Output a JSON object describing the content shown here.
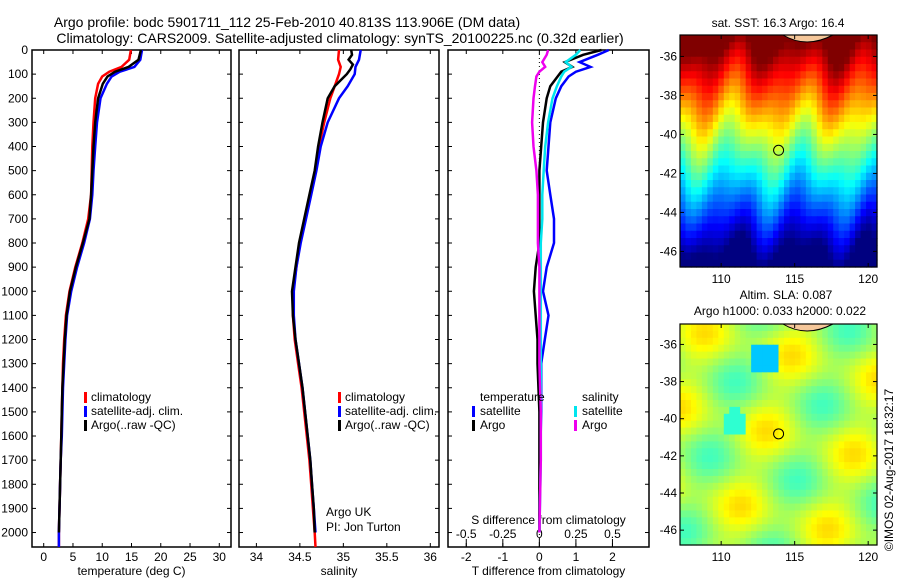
{
  "titles": {
    "line1": "Argo profile: bodc 5901711_112 25-Feb-2010 40.813S 113.906E (DM data)",
    "line2": "Climatology: CARS2009. Satellite-adjusted climatology: synTS_20100225.nc (0.32d earlier)"
  },
  "colors": {
    "climatology": "#ff0000",
    "satellite": "#0000ff",
    "argo": "#000000",
    "salinity_satellite": "#00e5ee",
    "salinity_argo": "#ee00ee"
  },
  "chart_data": [
    {
      "type": "line",
      "id": "temperature",
      "xlabel": "temperature (deg C)",
      "ylabel": "",
      "xlim": [
        -2,
        32
      ],
      "ylim": [
        2060,
        0
      ],
      "xticks": [
        "0",
        "5",
        "10",
        "15",
        "20",
        "25",
        "30"
      ],
      "xtick_values": [
        0,
        5,
        10,
        15,
        20,
        25,
        30
      ],
      "yticks": [
        "0",
        "100",
        "200",
        "300",
        "400",
        "500",
        "600",
        "700",
        "800",
        "900",
        "1000",
        "1100",
        "1200",
        "1300",
        "1400",
        "1500",
        "1600",
        "1700",
        "1800",
        "1900",
        "2000"
      ],
      "ytick_values": [
        0,
        100,
        200,
        300,
        400,
        500,
        600,
        700,
        800,
        900,
        1000,
        1100,
        1200,
        1300,
        1400,
        1500,
        1600,
        1700,
        1800,
        1900,
        2000
      ],
      "legend": [
        "climatology",
        "satellite-adj. clim.",
        "Argo(..raw -QC)"
      ],
      "legend_position": "lower-center",
      "series": [
        {
          "name": "climatology",
          "depth": [
            0,
            40,
            70,
            90,
            110,
            140,
            200,
            300,
            400,
            500,
            600,
            700,
            800,
            900,
            1000,
            1100,
            1200,
            1300,
            1400,
            1500,
            1600,
            1700,
            1800,
            1900,
            2000,
            2060
          ],
          "values": [
            14.9,
            14.6,
            13.3,
            11.2,
            10.0,
            9.3,
            8.8,
            8.5,
            8.3,
            8.2,
            8.1,
            7.6,
            6.6,
            5.4,
            4.4,
            3.8,
            3.5,
            3.3,
            3.2,
            3.1,
            3.0,
            2.9,
            2.8,
            2.7,
            2.6,
            2.6
          ]
        },
        {
          "name": "satellite-adj. clim.",
          "depth": [
            0,
            40,
            70,
            90,
            110,
            140,
            200,
            300,
            400,
            500,
            600,
            700,
            800,
            900,
            1000,
            1100,
            1200,
            1300,
            1400,
            1500,
            1600,
            1700,
            1800,
            1900,
            2000,
            2060
          ],
          "values": [
            16.8,
            16.5,
            15.5,
            13.0,
            11.6,
            10.8,
            9.7,
            9.1,
            8.8,
            8.5,
            8.3,
            7.9,
            6.9,
            5.7,
            4.7,
            4.0,
            3.7,
            3.5,
            3.3,
            3.2,
            3.1,
            2.9,
            2.8,
            2.7,
            2.6,
            2.6
          ]
        },
        {
          "name": "Argo(..raw -QC)",
          "depth": [
            0,
            40,
            70,
            90,
            110,
            140,
            200,
            300,
            400,
            500,
            600,
            700,
            800,
            900,
            1000,
            1100,
            1200,
            1300,
            1400,
            1500,
            1600,
            1700,
            1800,
            1900,
            2000
          ],
          "values": [
            16.6,
            16.2,
            14.5,
            12.2,
            10.9,
            10.1,
            9.3,
            8.8,
            8.5,
            8.3,
            8.1,
            7.8,
            6.7,
            5.5,
            4.5,
            3.9,
            3.6,
            3.4,
            3.2,
            3.1,
            3.0,
            2.9,
            2.8,
            2.7,
            2.6
          ]
        }
      ]
    },
    {
      "type": "line",
      "id": "salinity",
      "xlabel": "salinity",
      "xlim": [
        33.8,
        36.1
      ],
      "ylim": [
        2060,
        0
      ],
      "xticks": [
        "34",
        "34.5",
        "35",
        "35.5",
        "36"
      ],
      "xtick_values": [
        34,
        34.5,
        35,
        35.5,
        36
      ],
      "legend": [
        "climatology",
        "satellite-adj. clim.",
        "Argo(..raw -QC)"
      ],
      "legend_position": "lower-right",
      "annotation": [
        "Argo UK",
        "PI: Jon Turton"
      ],
      "series": [
        {
          "name": "climatology",
          "depth": [
            0,
            40,
            70,
            100,
            150,
            200,
            300,
            400,
            500,
            600,
            700,
            800,
            900,
            1000,
            1100,
            1200,
            1300,
            1400,
            1500,
            1600,
            1700,
            1800,
            1900,
            2000,
            2060
          ],
          "values": [
            34.95,
            34.94,
            34.97,
            34.95,
            34.9,
            34.85,
            34.78,
            34.72,
            34.68,
            34.62,
            34.56,
            34.5,
            34.46,
            34.42,
            34.42,
            34.44,
            34.48,
            34.52,
            34.55,
            34.58,
            34.61,
            34.63,
            34.65,
            34.67,
            34.68
          ]
        },
        {
          "name": "satellite-adj. clim.",
          "depth": [
            0,
            40,
            70,
            100,
            150,
            200,
            300,
            400,
            500,
            600,
            700,
            800,
            900,
            1000,
            1100,
            1200,
            1300,
            1400,
            1500,
            1600,
            1700,
            1800,
            1900,
            2000
          ],
          "values": [
            35.2,
            35.18,
            35.14,
            35.13,
            35.05,
            34.95,
            34.82,
            34.74,
            34.69,
            34.63,
            34.57,
            34.51,
            34.46,
            34.43,
            34.43,
            34.45,
            34.49,
            34.53,
            34.56,
            34.59,
            34.62,
            34.64,
            34.66,
            34.68
          ]
        },
        {
          "name": "Argo(..raw -QC)",
          "depth": [
            0,
            20,
            40,
            60,
            80,
            100,
            150,
            200,
            300,
            400,
            500,
            600,
            700,
            800,
            900,
            1000,
            1100,
            1200,
            1300,
            1400,
            1500,
            1600,
            1700,
            1800,
            1900,
            2000
          ],
          "values": [
            35.09,
            35.1,
            35.06,
            35.11,
            35.08,
            35.04,
            34.9,
            34.82,
            34.76,
            34.71,
            34.67,
            34.61,
            34.55,
            34.49,
            34.45,
            34.41,
            34.42,
            34.45,
            34.49,
            34.53,
            34.56,
            34.59,
            34.62,
            34.64,
            34.66,
            34.67
          ]
        }
      ]
    },
    {
      "type": "line",
      "id": "difference",
      "xlabel": "T difference from climatology",
      "xlabel_secondary": "S difference from climatology",
      "xlim": [
        -2.5,
        3.0
      ],
      "xlim_secondary": [
        -0.625,
        0.75
      ],
      "ylim": [
        2060,
        0
      ],
      "xticks": [
        "-2",
        "-1",
        "0",
        "1",
        "2"
      ],
      "xtick_values": [
        -2,
        -1,
        0,
        1,
        2
      ],
      "xticks_secondary": [
        "-0.5",
        "-0.25",
        "0",
        "0.25",
        "0.5"
      ],
      "xtick_values_secondary": [
        -0.5,
        -0.25,
        0,
        0.25,
        0.5
      ],
      "legend_groups": [
        {
          "title": "temperature",
          "entries": [
            "satellite",
            "Argo"
          ]
        },
        {
          "title": "salinity",
          "entries": [
            "satellite",
            "Argo"
          ]
        }
      ],
      "legend_position": "lower-center",
      "series": [
        {
          "name": "temperature satellite",
          "depth": [
            0,
            20,
            50,
            70,
            90,
            110,
            150,
            200,
            300,
            400,
            500,
            600,
            700,
            800,
            900,
            1000,
            1100,
            1200,
            1300,
            1500,
            1700,
            2000
          ],
          "values": [
            1.9,
            1.6,
            1.1,
            1.4,
            1.0,
            0.8,
            0.6,
            0.45,
            0.3,
            0.25,
            0.2,
            0.3,
            0.4,
            0.4,
            0.2,
            0.1,
            0.25,
            0.15,
            0.05,
            0.05,
            0.02,
            0.0
          ]
        },
        {
          "name": "temperature Argo",
          "depth": [
            0,
            20,
            50,
            70,
            90,
            110,
            150,
            200,
            300,
            400,
            500,
            600,
            700,
            800,
            900,
            1000,
            1100,
            1200,
            1300,
            1500,
            1700,
            2000
          ],
          "values": [
            1.7,
            1.2,
            0.7,
            0.9,
            0.6,
            0.5,
            0.3,
            0.2,
            0.1,
            0.05,
            0.0,
            0.0,
            0.0,
            0.0,
            -0.1,
            -0.15,
            -0.1,
            -0.05,
            -0.05,
            0.0,
            0.0,
            0.0
          ]
        },
        {
          "name": "salinity satellite",
          "depth": [
            0,
            20,
            50,
            70,
            90,
            110,
            150,
            200,
            300,
            400,
            500,
            600,
            700,
            800,
            900,
            1000,
            1100,
            1200,
            1300,
            1500,
            1700,
            2000
          ],
          "values": [
            0.28,
            0.25,
            0.18,
            0.22,
            0.17,
            0.15,
            0.12,
            0.09,
            0.06,
            0.04,
            0.03,
            0.02,
            0.02,
            0.01,
            0.01,
            0.01,
            0.01,
            0.01,
            0.01,
            0.01,
            0.01,
            0.0
          ]
        },
        {
          "name": "salinity Argo",
          "depth": [
            0,
            20,
            50,
            70,
            90,
            110,
            150,
            200,
            300,
            400,
            500,
            600,
            700,
            800,
            900,
            1000,
            1100,
            1200,
            1300,
            1500,
            1700,
            2000
          ],
          "values": [
            0.06,
            0.05,
            0.02,
            0.04,
            0.0,
            -0.02,
            -0.03,
            -0.04,
            -0.05,
            -0.04,
            -0.02,
            -0.01,
            -0.01,
            -0.01,
            0.0,
            0.0,
            0.0,
            0.0,
            0.0,
            0.01,
            0.01,
            0.0
          ]
        }
      ]
    },
    {
      "type": "heatmap",
      "id": "sst-map",
      "title": "sat. SST: 16.3 Argo: 16.4",
      "xlim": [
        107.2,
        120.6
      ],
      "ylim": [
        -46.8,
        -34.9
      ],
      "xticks": [
        "110",
        "115",
        "120"
      ],
      "xtick_values": [
        110,
        115,
        120
      ],
      "yticks": [
        "-36",
        "-38",
        "-40",
        "-42",
        "-44",
        "-46"
      ],
      "ytick_values": [
        -36,
        -38,
        -40,
        -42,
        -44,
        -46
      ],
      "marker": {
        "lon": 113.906,
        "lat": -40.813
      },
      "colormap": "jet (warm north, cold south)"
    },
    {
      "type": "heatmap",
      "id": "sla-map",
      "title_line1": "Altim. SLA: 0.087",
      "title_line2": "Argo h1000: 0.033 h2000: 0.022",
      "xlim": [
        107.2,
        120.6
      ],
      "ylim": [
        -46.8,
        -34.9
      ],
      "xticks": [
        "110",
        "115",
        "120"
      ],
      "xtick_values": [
        110,
        115,
        120
      ],
      "yticks": [
        "-36",
        "-38",
        "-40",
        "-42",
        "-44",
        "-46"
      ],
      "ytick_values": [
        -36,
        -38,
        -40,
        -42,
        -44,
        -46
      ],
      "marker": {
        "lon": 113.906,
        "lat": -40.813
      },
      "colormap": "jet (mostly green)"
    }
  ],
  "credit": "©IMOS 02-Aug-2017 18:32:17"
}
